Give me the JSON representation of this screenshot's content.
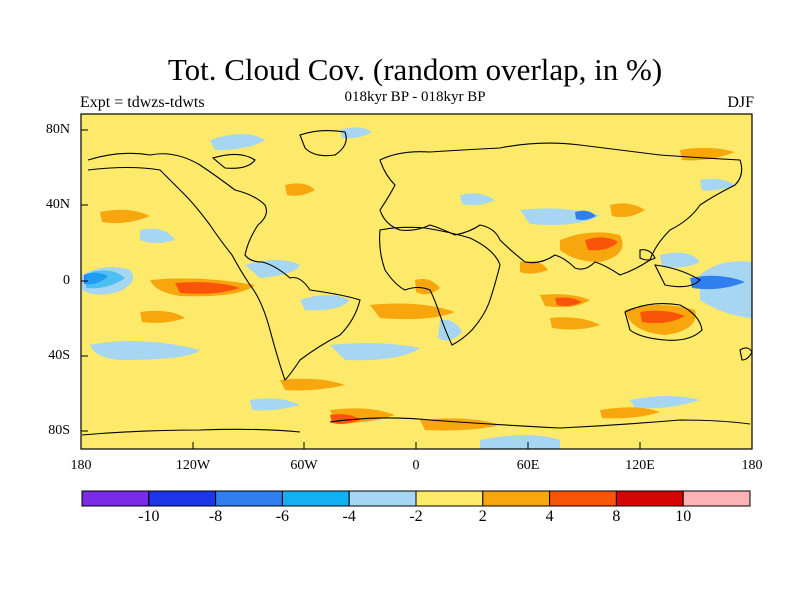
{
  "header": {
    "title": "Tot. Cloud Cov. (random overlap, in %)",
    "subtitle": "018kyr BP - 018kyr BP",
    "left": "Expt = tdwzs-tdwts",
    "right": "DJF"
  },
  "axes": {
    "lat_ticks": [
      "80N",
      "40N",
      "0",
      "40S",
      "80S"
    ],
    "lon_ticks": [
      "180",
      "120W",
      "60W",
      "0",
      "60E",
      "120E",
      "180"
    ]
  },
  "colorbar": {
    "colors": [
      "#7a2be6",
      "#1d35e8",
      "#2f7fef",
      "#10b0f2",
      "#a6d6f2",
      "#fde96a",
      "#f8a60d",
      "#f95408",
      "#d50505",
      "#fcb3b3"
    ],
    "labels": [
      "-10",
      "-8",
      "-6",
      "-4",
      "-2",
      "2",
      "4",
      "8",
      "10"
    ]
  }
}
